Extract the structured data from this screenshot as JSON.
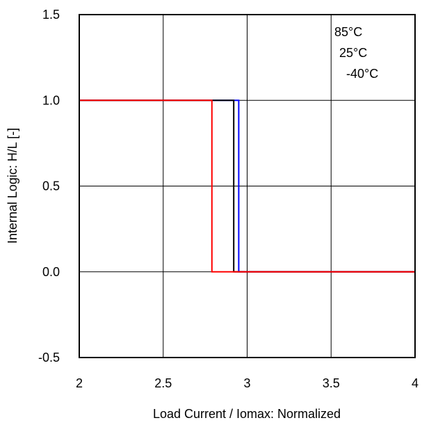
{
  "chart_data": {
    "type": "line",
    "title": "",
    "xlabel": "Load Current / Iomax: Normalized",
    "ylabel": "Internal Logic: H/L [-]",
    "xlim": [
      2,
      4
    ],
    "ylim": [
      -0.5,
      1.5
    ],
    "x_ticks": [
      2,
      2.5,
      3,
      3.5,
      4
    ],
    "x_tick_labels": [
      "2",
      "2.5",
      "3",
      "3.5",
      "4"
    ],
    "y_ticks": [
      -0.5,
      0.0,
      0.5,
      1.0,
      1.5
    ],
    "y_tick_labels": [
      "-0.5",
      "0.0",
      "0.5",
      "1.0",
      "1.5"
    ],
    "grid": true,
    "legend_position": "top-right",
    "legend": [
      "85°C",
      "25°C",
      "-40°C"
    ],
    "series": [
      {
        "name": "85°C",
        "color": "#ff0000",
        "x": [
          2.0,
          2.79,
          2.79,
          4.0
        ],
        "y": [
          1,
          1,
          0,
          0
        ]
      },
      {
        "name": "25°C",
        "color": "#000000",
        "x": [
          2.0,
          2.92,
          2.92,
          4.0
        ],
        "y": [
          1,
          1,
          0,
          0
        ]
      },
      {
        "name": "-40°C",
        "color": "#0000ff",
        "x": [
          2.0,
          2.95,
          2.95,
          4.0
        ],
        "y": [
          1,
          1,
          0,
          0
        ]
      }
    ]
  }
}
